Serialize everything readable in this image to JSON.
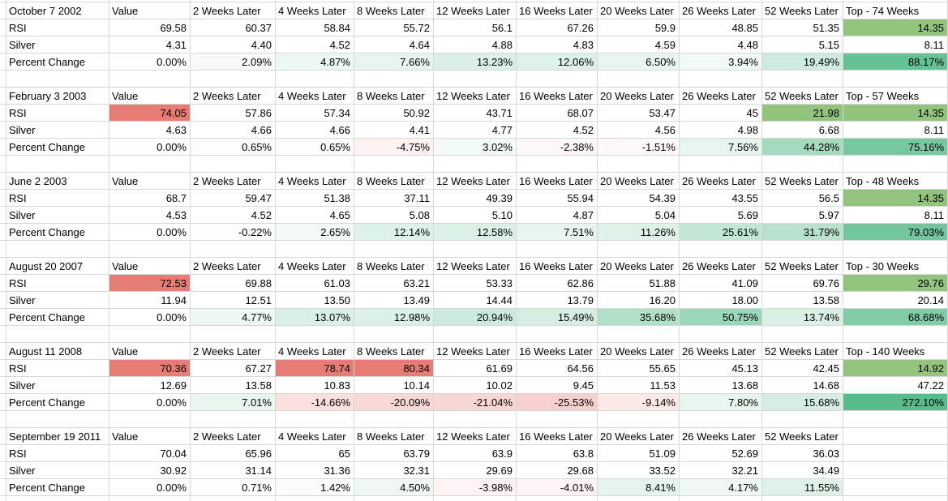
{
  "styles": {
    "rsi_overbought_fill": "#e67c73",
    "rsi_oversold_fill": "#93c47d",
    "gradient_positive": "#57bb8a",
    "gradient_negative": "#e67c73",
    "gridline": "#d8d8d8",
    "background": "#ffffff",
    "text": "#000000"
  },
  "columns": [
    "Value",
    "2 Weeks Later",
    "4 Weeks Later",
    "8 Weeks Later",
    "12 Weeks Later",
    "16 Weeks Later",
    "20 Weeks Later",
    "26 Weeks Later",
    "52 Weeks Later"
  ],
  "row_labels": [
    "RSI",
    "Silver",
    "Percent Change"
  ],
  "blocks": [
    {
      "date": "October 7 2002",
      "top_label": "Top - 74 Weeks",
      "rsi": [
        "69.58",
        "60.37",
        "58.84",
        "55.72",
        "56.1",
        "67.26",
        "59.9",
        "48.85",
        "51.35",
        "14.35"
      ],
      "rsi_highlight": [
        "",
        "",
        "",
        "",
        "",
        "",
        "",
        "",
        "",
        "low"
      ],
      "silver": [
        "4.31",
        "4.40",
        "4.52",
        "4.64",
        "4.88",
        "4.83",
        "4.59",
        "4.48",
        "5.15",
        "8.11"
      ],
      "percent": [
        "0.00%",
        "2.09%",
        "4.87%",
        "7.66%",
        "13.23%",
        "12.06%",
        "6.50%",
        "3.94%",
        "19.49%",
        "88.17%"
      ]
    },
    {
      "date": "February 3 2003",
      "top_label": "Top - 57 Weeks",
      "rsi": [
        "74.05",
        "57.86",
        "57.34",
        "50.92",
        "43.71",
        "68.07",
        "53.47",
        "45",
        "21.98",
        "14.35"
      ],
      "rsi_highlight": [
        "high",
        "",
        "",
        "",
        "",
        "",
        "",
        "",
        "low",
        "low"
      ],
      "silver": [
        "4.63",
        "4.66",
        "4.66",
        "4.41",
        "4.77",
        "4.52",
        "4.56",
        "4.98",
        "6.68",
        "8.11"
      ],
      "percent": [
        "0.00%",
        "0.65%",
        "0.65%",
        "-4.75%",
        "3.02%",
        "-2.38%",
        "-1.51%",
        "7.56%",
        "44.28%",
        "75.16%"
      ]
    },
    {
      "date": "June 2 2003",
      "top_label": "Top - 48 Weeks",
      "rsi": [
        "68.7",
        "59.47",
        "51.38",
        "37.11",
        "49.39",
        "55.94",
        "54.39",
        "43.55",
        "56.5",
        "14.35"
      ],
      "rsi_highlight": [
        "",
        "",
        "",
        "",
        "",
        "",
        "",
        "",
        "",
        "low"
      ],
      "silver": [
        "4.53",
        "4.52",
        "4.65",
        "5.08",
        "5.10",
        "4.87",
        "5.04",
        "5.69",
        "5.97",
        "8.11"
      ],
      "percent": [
        "0.00%",
        "-0.22%",
        "2.65%",
        "12.14%",
        "12.58%",
        "7.51%",
        "11.26%",
        "25.61%",
        "31.79%",
        "79.03%"
      ]
    },
    {
      "date": "August 20 2007",
      "top_label": "Top - 30 Weeks",
      "rsi": [
        "72.53",
        "69.88",
        "61.03",
        "63.21",
        "53.33",
        "62.86",
        "51.88",
        "41.09",
        "69.76",
        "29.76"
      ],
      "rsi_highlight": [
        "high",
        "",
        "",
        "",
        "",
        "",
        "",
        "",
        "",
        "low"
      ],
      "silver": [
        "11.94",
        "12.51",
        "13.50",
        "13.49",
        "14.44",
        "13.79",
        "16.20",
        "18.00",
        "13.58",
        "20.14"
      ],
      "percent": [
        "0.00%",
        "4.77%",
        "13.07%",
        "12.98%",
        "20.94%",
        "15.49%",
        "35.68%",
        "50.75%",
        "13.74%",
        "68.68%"
      ]
    },
    {
      "date": "August 11 2008",
      "top_label": "Top - 140 Weeks",
      "rsi": [
        "70.36",
        "67.27",
        "78.74",
        "80.34",
        "61.69",
        "64.56",
        "55.65",
        "45.13",
        "42.45",
        "14.92"
      ],
      "rsi_highlight": [
        "high",
        "",
        "high",
        "high",
        "",
        "",
        "",
        "",
        "",
        "low"
      ],
      "silver": [
        "12.69",
        "13.58",
        "10.83",
        "10.14",
        "10.02",
        "9.45",
        "11.53",
        "13.68",
        "14.68",
        "47.22"
      ],
      "percent": [
        "0.00%",
        "7.01%",
        "-14.66%",
        "-20.09%",
        "-21.04%",
        "-25.53%",
        "-9.14%",
        "7.80%",
        "15.68%",
        "272.10%"
      ]
    },
    {
      "date": "September 19 2011",
      "top_label": "",
      "rsi": [
        "70.04",
        "65.96",
        "65",
        "63.79",
        "63.9",
        "63.8",
        "51.09",
        "52.69",
        "36.03",
        ""
      ],
      "rsi_highlight": [
        "",
        "",
        "",
        "",
        "",
        "",
        "",
        "",
        "",
        ""
      ],
      "silver": [
        "30.92",
        "31.14",
        "31.36",
        "32.31",
        "29.69",
        "29.68",
        "33.52",
        "32.21",
        "34.49",
        ""
      ],
      "percent": [
        "0.00%",
        "0.71%",
        "1.42%",
        "4.50%",
        "-3.98%",
        "-4.01%",
        "8.41%",
        "4.17%",
        "11.55%",
        ""
      ]
    }
  ]
}
